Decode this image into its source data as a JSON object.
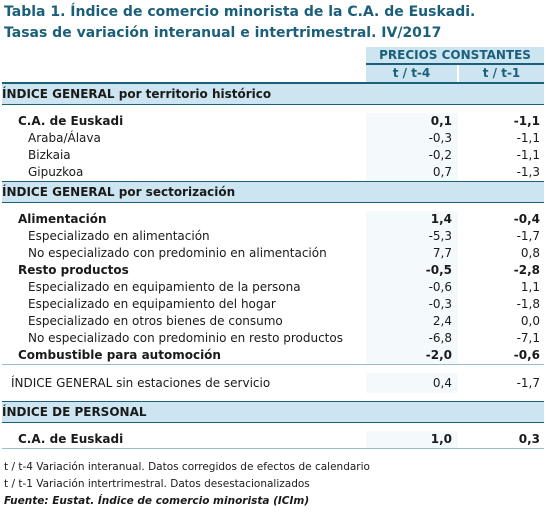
{
  "title": {
    "line1": "Tabla 1. Índice de comercio minorista de la C.A. de Euskadi.",
    "line2": "Tasas de variación interanual e intertrimestral. IV/2017"
  },
  "header": {
    "group": "PRECIOS CONSTANTES",
    "col1": "t / t-4",
    "col2": "t / t-1"
  },
  "sections": {
    "territorio": {
      "heading": "ÍNDICE GENERAL por territorio histórico",
      "rows": [
        {
          "label": "C.A. de Euskadi",
          "v1": "0,1",
          "v2": "-1,1"
        },
        {
          "label": "Araba/Álava",
          "v1": "-0,3",
          "v2": "-1,1"
        },
        {
          "label": "Bizkaia",
          "v1": "-0,2",
          "v2": "-1,1"
        },
        {
          "label": "Gipuzkoa",
          "v1": "0,7",
          "v2": "-1,3"
        }
      ]
    },
    "sector": {
      "heading": "ÍNDICE GENERAL por sectorización",
      "rows": [
        {
          "label": "Alimentación",
          "v1": "1,4",
          "v2": "-0,4"
        },
        {
          "label": "Especializado en alimentación",
          "v1": "-5,3",
          "v2": "-1,7"
        },
        {
          "label": "No especializado con predominio en alimentación",
          "v1": "7,7",
          "v2": "0,8"
        },
        {
          "label": "Resto productos",
          "v1": "-0,5",
          "v2": "-2,8"
        },
        {
          "label": "Especializado en equipamiento de la persona",
          "v1": "-0,6",
          "v2": "1,1"
        },
        {
          "label": "Especializado en equipamiento del hogar",
          "v1": "-0,3",
          "v2": "-1,8"
        },
        {
          "label": "Especializado en otros bienes de consumo",
          "v1": "2,4",
          "v2": "0,0"
        },
        {
          "label": "No especializado con predominio en resto productos",
          "v1": "-6,8",
          "v2": "-7,1"
        },
        {
          "label": "Combustible para automoción",
          "v1": "-2,0",
          "v2": "-0,6"
        }
      ]
    },
    "sin_estaciones": {
      "label": "ÍNDICE GENERAL sin estaciones de servicio",
      "v1": "0,4",
      "v2": "-1,7"
    },
    "personal": {
      "heading": "ÍNDICE DE PERSONAL",
      "rows": [
        {
          "label": "C.A. de Euskadi",
          "v1": "1,0",
          "v2": "0,3"
        }
      ]
    }
  },
  "notes": {
    "n1": "t / t-4 Variación interanual. Datos corregidos de efectos de calendario",
    "n2": "t / t-1 Variación intertrimestral. Datos desestacionalizados",
    "source": "Fuente: Eustat. Índice de comercio minorista (ICIm)"
  }
}
